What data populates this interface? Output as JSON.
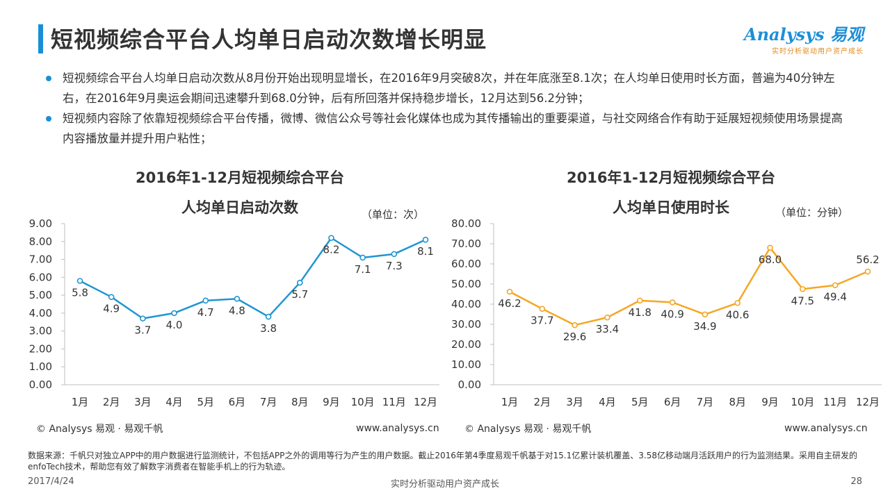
{
  "title": "短视频综合平台人均单日启动次数增长明显",
  "logo": {
    "name": "Analysys 易观",
    "slogan": "实时分析驱动用户资产成长"
  },
  "bullets": [
    "短视频综合平台人均单日启动次数从8月份开始出现明显增长，在2016年9月突破8次，并在年底涨至8.1次；在人均单日使用时长方面，普遍为40分钟左右，在2016年9月奥运会期间迅速攀升到68.0分钟，后有所回落并保持稳步增长，12月达到56.2分钟；",
    "短视频内容除了依靠短视频综合平台传播，微博、微信公众号等社会化媒体也成为其传播输出的重要渠道，与社交网络合作有助于延展短视频使用场景提高内容播放量并提升用户粘性；"
  ],
  "chart_data": [
    {
      "type": "line",
      "title": "2016年1-12月短视频综合平台",
      "subtitle": "人均单日启动次数",
      "unit": "（单位：次）",
      "categories": [
        "1月",
        "2月",
        "3月",
        "4月",
        "5月",
        "6月",
        "7月",
        "8月",
        "9月",
        "10月",
        "11月",
        "12月"
      ],
      "values": [
        5.8,
        4.9,
        3.7,
        4.0,
        4.7,
        4.8,
        3.8,
        5.7,
        8.2,
        7.1,
        7.3,
        8.1
      ],
      "ylim": [
        0,
        9
      ],
      "yticks": [
        "0.00",
        "1.00",
        "2.00",
        "3.00",
        "4.00",
        "5.00",
        "6.00",
        "7.00",
        "8.00",
        "9.00"
      ],
      "color": "#1f95d2",
      "copyright": "© Analysys 易观 · 易观千帆",
      "site": "www.analysys.cn"
    },
    {
      "type": "line",
      "title": "2016年1-12月短视频综合平台",
      "subtitle": "人均单日使用时长",
      "unit": "（单位：分钟）",
      "categories": [
        "1月",
        "2月",
        "3月",
        "4月",
        "5月",
        "6月",
        "7月",
        "8月",
        "9月",
        "10月",
        "11月",
        "12月"
      ],
      "values": [
        46.2,
        37.7,
        29.6,
        33.4,
        41.8,
        40.9,
        34.9,
        40.6,
        68.0,
        47.5,
        49.4,
        56.2
      ],
      "ylim": [
        0,
        80
      ],
      "yticks": [
        "0.00",
        "10.00",
        "20.00",
        "30.00",
        "40.00",
        "50.00",
        "60.00",
        "70.00",
        "80.00"
      ],
      "color": "#f5a623",
      "copyright": "© Analysys 易观 · 易观千帆",
      "site": "www.analysys.cn"
    }
  ],
  "footnote": "数据来源：千帆只对独立APP中的用户数据进行监测统计，不包括APP之外的调用等行为产生的用户数据。截止2016年第4季度易观千帆基于对15.1亿累计装机覆盖、3.58亿移动端月活跃用户的行为监测结果。采用自主研发的enfoTech技术，帮助您有效了解数字消费者在智能手机上的行为轨迹。",
  "footer": {
    "date": "2017/4/24",
    "slogan": "实时分析驱动用户资产成长",
    "page": "28"
  }
}
